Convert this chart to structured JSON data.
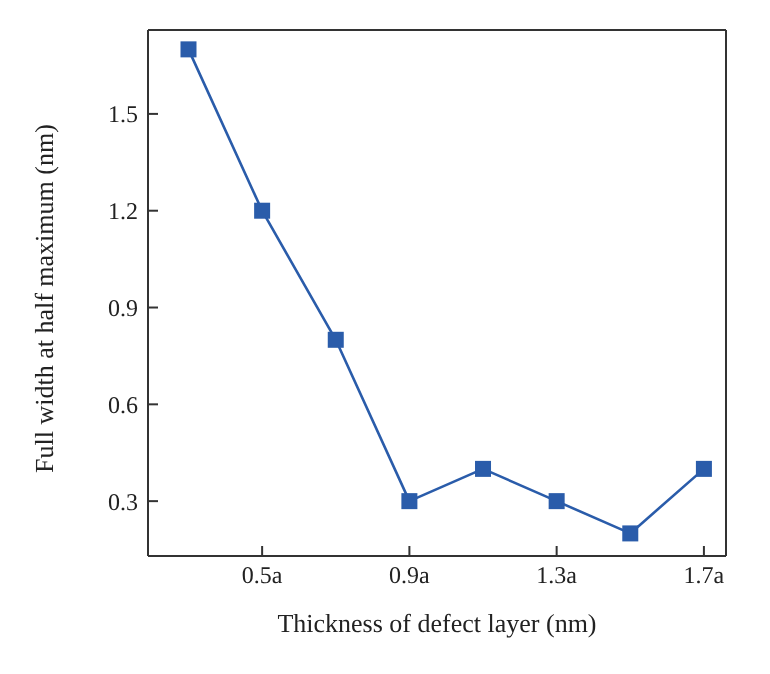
{
  "chart_data": {
    "type": "line",
    "xlabel": "Thickness of defect layer (nm)",
    "ylabel": "Full width at half maximum (nm)",
    "x": [
      0.3,
      0.5,
      0.7,
      0.9,
      1.1,
      1.3,
      1.5,
      1.7
    ],
    "series": [
      {
        "color": "#2a5caa",
        "values": [
          1.7,
          1.2,
          0.8,
          0.3,
          0.4,
          0.3,
          0.2,
          0.4
        ]
      }
    ],
    "xlim": [
      0.19,
      1.76
    ],
    "xticks": [
      {
        "value": 0.5,
        "label": "0.5a"
      },
      {
        "value": 0.9,
        "label": "0.9a"
      },
      {
        "value": 1.3,
        "label": "1.3a"
      },
      {
        "value": 1.7,
        "label": "1.7a"
      }
    ],
    "ylim": [
      0.13,
      1.76
    ],
    "yticks": [
      0.3,
      0.6,
      0.9,
      1.2,
      1.5
    ],
    "grid": false,
    "legend": false,
    "marker": "square",
    "line_style": "solid"
  }
}
